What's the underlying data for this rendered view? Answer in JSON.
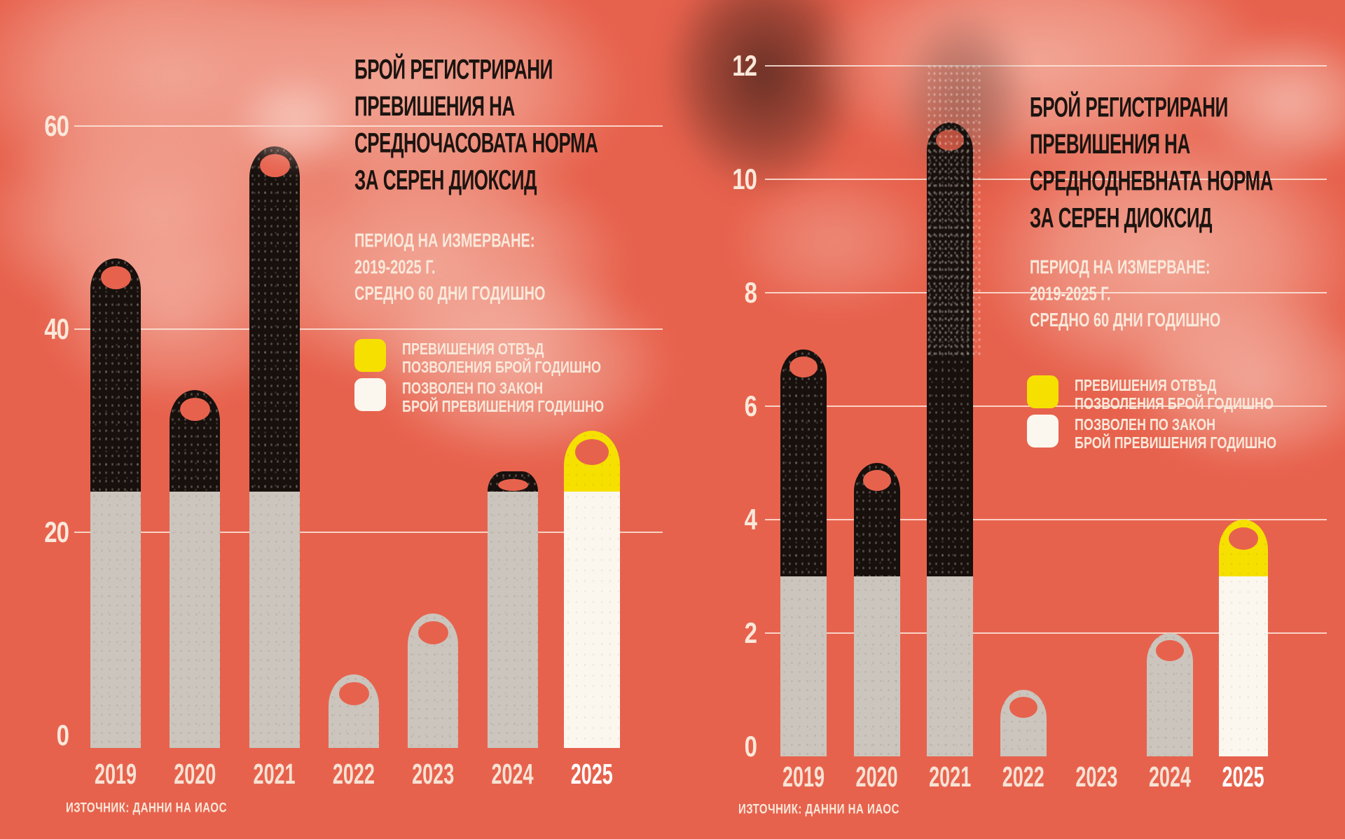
{
  "background_color": "#e7624d",
  "divider_color": "#f4ece3",
  "chart_data": [
    {
      "type": "bar",
      "panel": "left",
      "title_lines": [
        "БРОЙ РЕГИСТРИРАНИ",
        "ПРЕВИШЕНИЯ НА",
        "СРЕДНОЧАСОВАТА НОРМА",
        "ЗА СЕРЕН ДИОКСИД"
      ],
      "subtitle_lines": [
        "ПЕРИОД НА ИЗМЕРВАНЕ:",
        "2019-2025 Г.",
        "СРЕДНО 60 ДНИ ГОДИШНО"
      ],
      "legend": [
        {
          "swatch_color": "#f6e000",
          "lines": [
            "ПРЕВИШЕНИЯ ОТВЪД",
            "ПОЗВОЛЕНИЯ БРОЙ ГОДИШНО"
          ]
        },
        {
          "swatch_color": "#fbf7ef",
          "lines": [
            "ПОЗВОЛЕН ПО ЗАКОН",
            "БРОЙ ПРЕВИШЕНИЯ ГОДИШНО"
          ]
        }
      ],
      "source": "ИЗТОЧНИК: ДАННИ НА ИАОС",
      "categories": [
        "2019",
        "2020",
        "2021",
        "2022",
        "2023",
        "2024",
        "2025"
      ],
      "values": [
        47,
        34,
        58,
        6,
        12,
        26,
        30
      ],
      "allowed_by_law": 24,
      "series": [
        {
          "name": "ПОЗВОЛЕН ПО ЗАКОН БРОЙ ПРЕВИШЕНИЯ ГОДИШНО",
          "values": [
            24,
            24,
            24,
            6,
            12,
            24,
            24
          ]
        },
        {
          "name": "ПРЕВИШЕНИЯ ОТВЪД ПОЗВОЛЕНИЯ БРОЙ ГОДИШНО",
          "values": [
            23,
            10,
            34,
            0,
            0,
            2,
            6
          ]
        }
      ],
      "highlight_year": "2025",
      "y_ticks": [
        0,
        20,
        40,
        60
      ],
      "ylim": [
        0,
        60
      ],
      "grid": true,
      "legend_position": "middle-right",
      "colors": {
        "past_exceed": "#17100d",
        "past_allowed": "#cbc5bd",
        "highlight_exceed": "#f6e000",
        "highlight_allowed": "#fbf7ef"
      }
    },
    {
      "type": "bar",
      "panel": "right",
      "title_lines": [
        "БРОЙ РЕГИСТРИРАНИ",
        "ПРЕВИШЕНИЯ НА",
        "СРЕДНОДНЕВНАТА НОРМА",
        "ЗА СЕРЕН ДИОКСИД"
      ],
      "subtitle_lines": [
        "ПЕРИОД НА ИЗМЕРВАНЕ:",
        "2019-2025 Г.",
        "СРЕДНО 60 ДНИ ГОДИШНО"
      ],
      "legend": [
        {
          "swatch_color": "#f6e000",
          "lines": [
            "ПРЕВИШЕНИЯ ОТВЪД",
            "ПОЗВОЛЕНИЯ БРОЙ ГОДИШНО"
          ]
        },
        {
          "swatch_color": "#fbf7ef",
          "lines": [
            "ПОЗВОЛЕН ПО ЗАКОН",
            "БРОЙ ПРЕВИШЕНИЯ ГОДИШНО"
          ]
        }
      ],
      "source": "ИЗТОЧНИК: ДАННИ НА ИАОС",
      "categories": [
        "2019",
        "2020",
        "2021",
        "2022",
        "2023",
        "2024",
        "2025"
      ],
      "values": [
        7,
        5,
        11,
        1,
        0,
        2,
        4
      ],
      "allowed_by_law": 3,
      "series": [
        {
          "name": "ПОЗВОЛЕН ПО ЗАКОН БРОЙ ПРЕВИШЕНИЯ ГОДИШНО",
          "values": [
            3,
            3,
            3,
            1,
            0,
            2,
            3
          ]
        },
        {
          "name": "ПРЕВИШЕНИЯ ОТВЪД ПОЗВОЛЕНИЯ БРОЙ ГОДИШНО",
          "values": [
            4,
            2,
            8,
            0,
            0,
            0,
            1
          ]
        }
      ],
      "highlight_year": "2025",
      "y_ticks": [
        0,
        2,
        4,
        6,
        8,
        10,
        12
      ],
      "ylim": [
        0,
        12
      ],
      "grid": true,
      "legend_position": "middle-right",
      "colors": {
        "past_exceed": "#17100d",
        "past_allowed": "#cbc5bd",
        "highlight_exceed": "#f6e000",
        "highlight_allowed": "#fbf7ef"
      }
    }
  ]
}
